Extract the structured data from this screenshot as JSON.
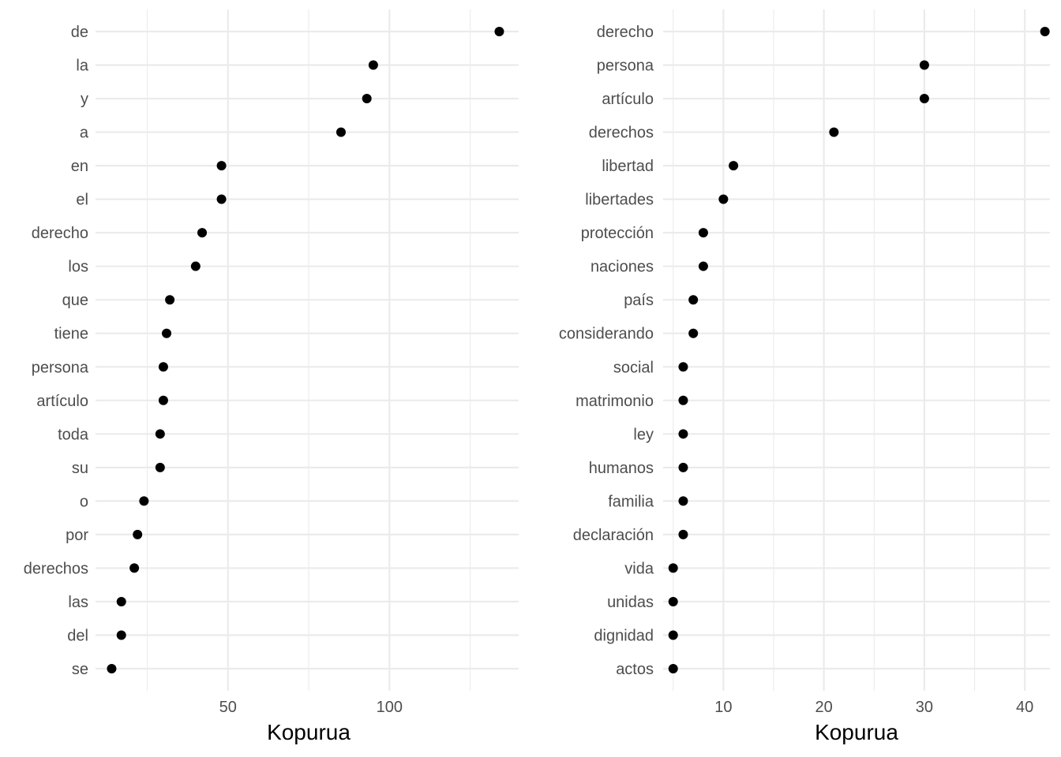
{
  "chart_data": [
    {
      "type": "scatter",
      "xlabel": "Kopurua",
      "ylabel": "",
      "xlim": [
        9,
        140
      ],
      "xticks": [
        50,
        100
      ],
      "xminor": [
        25,
        75,
        125
      ],
      "grid": true,
      "categories": [
        "de",
        "la",
        "y",
        "a",
        "en",
        "el",
        "derecho",
        "los",
        "que",
        "tiene",
        "persona",
        "artículo",
        "toda",
        "su",
        "o",
        "por",
        "derechos",
        "las",
        "del",
        "se"
      ],
      "values": [
        134,
        95,
        93,
        85,
        48,
        48,
        42,
        40,
        32,
        31,
        30,
        30,
        29,
        29,
        24,
        22,
        21,
        17,
        17,
        14
      ]
    },
    {
      "type": "scatter",
      "xlabel": "Kopurua",
      "ylabel": "",
      "xlim": [
        4,
        42.5
      ],
      "xticks": [
        10,
        20,
        30,
        40
      ],
      "xminor": [
        5,
        15,
        25,
        35
      ],
      "grid": true,
      "categories": [
        "derecho",
        "persona",
        "artículo",
        "derechos",
        "libertad",
        "libertades",
        "protección",
        "naciones",
        "país",
        "considerando",
        "social",
        "matrimonio",
        "ley",
        "humanos",
        "familia",
        "declaración",
        "vida",
        "unidas",
        "dignidad",
        "actos"
      ],
      "values": [
        42,
        30,
        30,
        21,
        11,
        10,
        8,
        8,
        7,
        7,
        6,
        6,
        6,
        6,
        6,
        6,
        5,
        5,
        5,
        5
      ]
    }
  ]
}
